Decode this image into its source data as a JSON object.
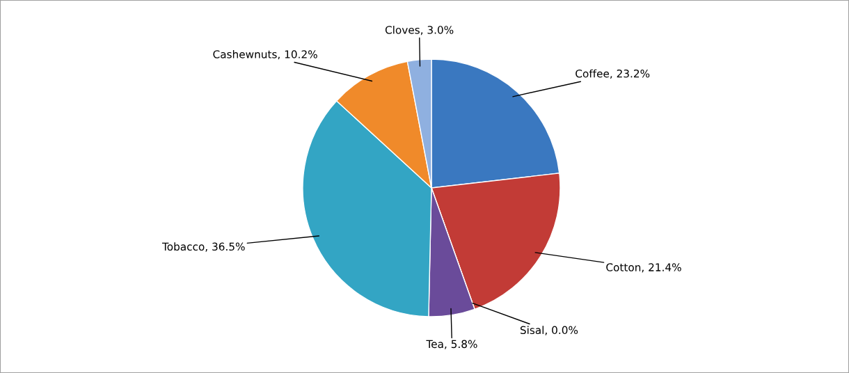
{
  "chart_data": {
    "type": "pie",
    "categories": [
      "Coffee",
      "Cotton",
      "Sisal",
      "Tea",
      "Tobacco",
      "Cashewnuts",
      "Cloves"
    ],
    "values": [
      23.2,
      21.4,
      0.0,
      5.8,
      36.5,
      10.2,
      3.0
    ],
    "value_labels": [
      ", 23.2%",
      ", 21.4%",
      ", 0.0%",
      ", 5.8%",
      ", 36.5%",
      ", 10.2%",
      ", 3.0%"
    ],
    "colors": [
      "#3a78c0",
      "#c23b36",
      "#8db040",
      "#6a4b9a",
      "#33a5c4",
      "#f08a2a",
      "#8fb0e0"
    ]
  }
}
